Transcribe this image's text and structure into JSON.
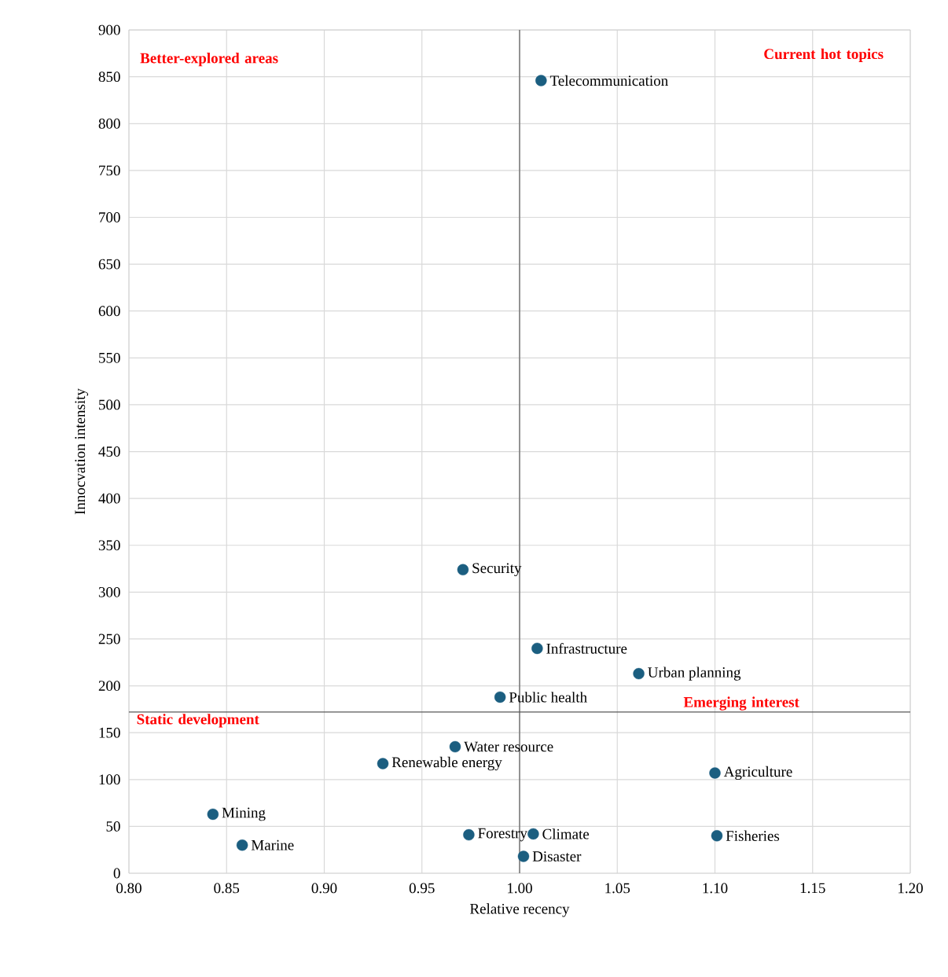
{
  "chart_data": {
    "type": "scatter",
    "xlabel": "Relative recency",
    "ylabel": "Innocvation intensity",
    "x": [
      1.011,
      0.971,
      1.009,
      1.061,
      0.99,
      0.967,
      0.93,
      1.1,
      0.843,
      0.858,
      0.974,
      1.007,
      1.101,
      1.002
    ],
    "series": [
      {
        "color": "#1b5e80",
        "values": [
          846,
          324,
          240,
          213,
          188,
          135,
          117,
          107,
          63,
          30,
          41,
          42,
          40,
          18
        ]
      }
    ],
    "xlim": [
      0.8,
      1.2
    ],
    "xticks": [
      {
        "value": 0.8,
        "label": "0.80"
      },
      {
        "value": 0.85,
        "label": "0.85"
      },
      {
        "value": 0.9,
        "label": "0.90"
      },
      {
        "value": 0.95,
        "label": "0.95"
      },
      {
        "value": 1.0,
        "label": "1.00"
      },
      {
        "value": 1.05,
        "label": "1.05"
      },
      {
        "value": 1.1,
        "label": "1.10"
      },
      {
        "value": 1.15,
        "label": "1.15"
      },
      {
        "value": 1.2,
        "label": "1.20"
      }
    ],
    "ylim": [
      0,
      900
    ],
    "yticks": [
      0,
      50,
      100,
      150,
      200,
      250,
      300,
      350,
      400,
      450,
      500,
      550,
      600,
      650,
      700,
      750,
      800,
      850,
      900
    ],
    "grid": true,
    "marker": "circle",
    "legend": false,
    "ref_lines": [
      {
        "axis": "x",
        "value": 1.0,
        "color": "#595959"
      },
      {
        "axis": "y",
        "value": 172,
        "color": "#595959"
      }
    ],
    "annotations": [
      "Better-explored areas",
      "Current hot topics",
      "Static development",
      "Emerging interest",
      {
        "text": "Telecommunication",
        "x": 1.011,
        "y": 846
      },
      {
        "text": "Security",
        "x": 0.971,
        "y": 324
      },
      {
        "text": "Infrastructure",
        "x": 1.009,
        "y": 240
      },
      {
        "text": "Urban planning",
        "x": 1.061,
        "y": 213
      },
      {
        "text": "Public health",
        "x": 0.99,
        "y": 188
      },
      {
        "text": "Water resource",
        "x": 0.967,
        "y": 135
      },
      {
        "text": "Renewable energy",
        "x": 0.93,
        "y": 117
      },
      {
        "text": "Agriculture",
        "x": 1.1,
        "y": 107
      },
      {
        "text": "Mining",
        "x": 0.843,
        "y": 63
      },
      {
        "text": "Marine",
        "x": 0.858,
        "y": 30
      },
      {
        "text": "Forestry",
        "x": 0.974,
        "y": 41
      },
      {
        "text": "Climate",
        "x": 1.007,
        "y": 42
      },
      {
        "text": "Fisheries",
        "x": 1.101,
        "y": 40
      },
      {
        "text": "Disaster",
        "x": 1.002,
        "y": 18
      }
    ]
  }
}
